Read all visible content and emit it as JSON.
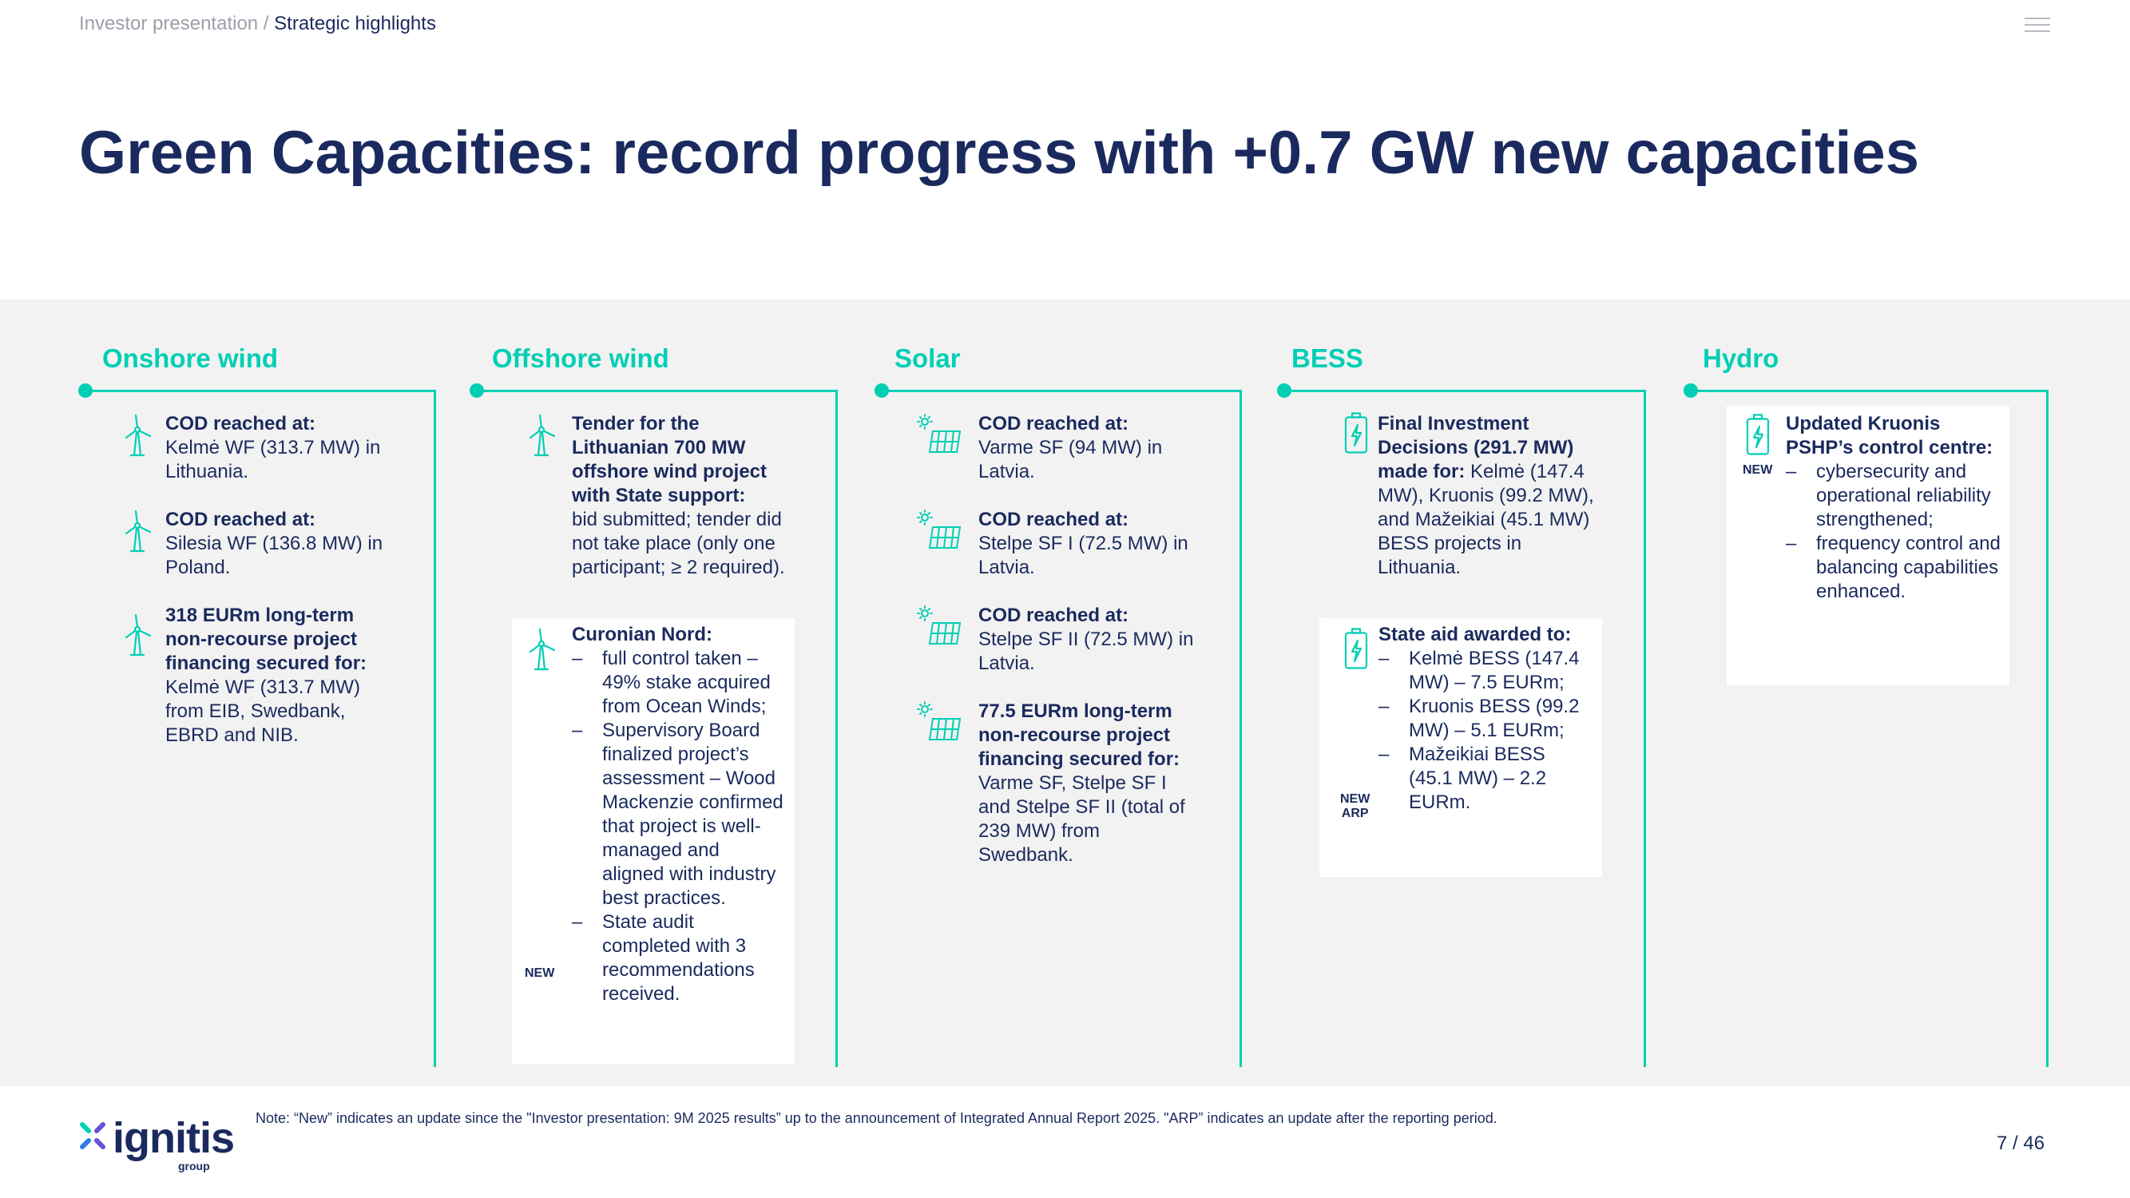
{
  "header": {
    "breadcrumb_parent": "Investor presentation",
    "breadcrumb_sep": " / ",
    "breadcrumb_current": "Strategic highlights",
    "title": "Green Capacities: record progress with +0.7 GW new capacities"
  },
  "columns": {
    "onshore": {
      "title": "Onshore wind",
      "e1_label": "COD reached at:",
      "e1_text": "Kelmė WF (313.7 MW) in Lithuania.",
      "e2_label": "COD reached at:",
      "e2_text": "Silesia WF (136.8 MW) in Poland.",
      "e3_label": "318 EURm long-term non-recourse project financing secured for:",
      "e3_text": "Kelmė WF (313.7 MW) from EIB, Swedbank, EBRD and NIB."
    },
    "offshore": {
      "title": "Offshore wind",
      "e1_label": "Tender for the Lithuanian 700 MW offshore wind project with State support:",
      "e1_text": "bid submitted; tender did not take place (only one participant; ≥ 2 required).",
      "e2_label": "Curonian Nord:",
      "e2_items": [
        "full control taken – 49% stake acquired from Ocean Winds;",
        "Supervisory Board finalized project’s assessment – Wood Mackenzie confirmed that project is well-managed and aligned with industry best practices.",
        "State audit completed with 3 recommendations received."
      ],
      "e2_new": "NEW"
    },
    "solar": {
      "title": "Solar",
      "e1_label": "COD reached at:",
      "e1_text": "Varme SF (94 MW) in Latvia.",
      "e2_label": "COD reached at:",
      "e2_text": "Stelpe SF I (72.5 MW) in Latvia.",
      "e3_label": "COD reached at:",
      "e3_text": "Stelpe SF II (72.5 MW) in Latvia.",
      "e4_label": "77.5 EURm long-term non-recourse project financing secured for:",
      "e4_text": "Varme SF, Stelpe SF I and Stelpe SF II (total of 239 MW) from Swedbank."
    },
    "bess": {
      "title": "BESS",
      "e1_label": "Final Investment Decisions (291.7 MW) made for:",
      "e1_text": "Kelmė (147.4 MW), Kruonis (99.2 MW), and Mažeikiai (45.1 MW) BESS projects in Lithuania.",
      "e2_label": "State aid awarded to:",
      "e2_items": [
        "Kelmė BESS (147.4 MW) – 7.5 EURm;",
        "Kruonis BESS (99.2 MW) – 5.1 EURm;",
        "Mažeikiai BESS (45.1 MW) – 2.2 EURm."
      ],
      "e2_new1": "NEW",
      "e2_new2": "ARP"
    },
    "hydro": {
      "title": "Hydro",
      "e1_label": "Updated Kruonis PSHP’s control centre:",
      "e1_items": [
        "cybersecurity and operational reliability strengthened;",
        "frequency control and balancing capabilities enhanced."
      ],
      "e1_new": "NEW"
    }
  },
  "footer": {
    "note": "Note: “New” indicates an update since the \"Investor presentation: 9M 2025 results” up to the announcement of Integrated Annual Report 2025. \"ARP” indicates an update after the reporting period.",
    "page": "7 / 46",
    "logo_text": "ignitis",
    "logo_sub": "group"
  },
  "colors": {
    "accent": "#00cfb4",
    "navy": "#1b2a5e",
    "band": "#f2f2f2"
  },
  "icons": [
    "wind-turbine-icon",
    "solar-panel-icon",
    "battery-icon",
    "menu-icon",
    "ignitis-logo-icon"
  ]
}
